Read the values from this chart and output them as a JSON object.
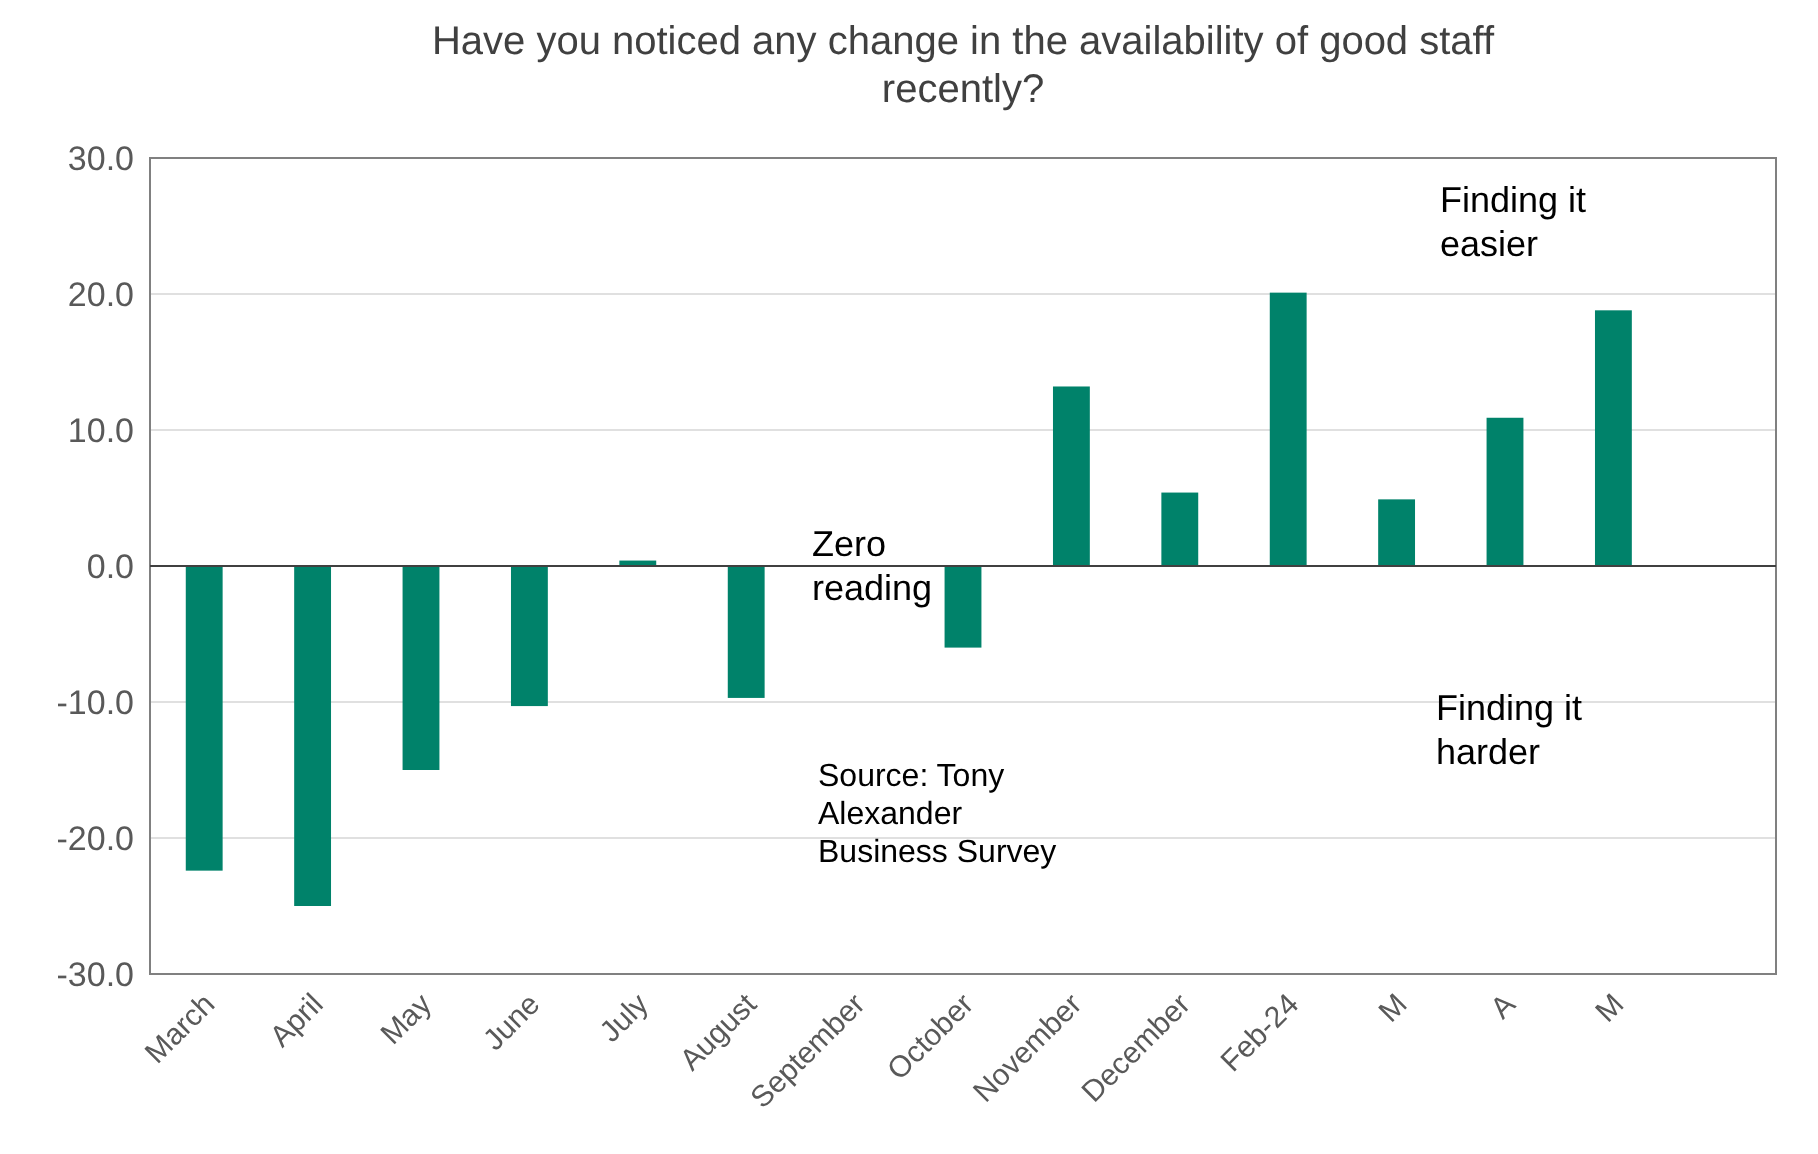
{
  "chart_data": {
    "type": "bar",
    "title": "Have you noticed any change in the availability of good staff recently?",
    "categories": [
      "March",
      "April",
      "May",
      "June",
      "July",
      "August",
      "September",
      "October",
      "November",
      "December",
      "Feb-24",
      "M",
      "A",
      "M",
      null
    ],
    "values": [
      -22.4,
      -25.0,
      -15.0,
      -10.3,
      0.4,
      -9.7,
      null,
      -6.0,
      13.2,
      5.4,
      20.1,
      4.9,
      10.9,
      18.8,
      null
    ],
    "color": "#00826a",
    "ylim": [
      -30,
      30
    ],
    "yticks": [
      {
        "value": -30,
        "label": "-30.0"
      },
      {
        "value": -20,
        "label": "-20.0"
      },
      {
        "value": -10,
        "label": "-10.0"
      },
      {
        "value": 0,
        "label": "0.0"
      },
      {
        "value": 10,
        "label": "10.0"
      },
      {
        "value": 20,
        "label": "20.0"
      },
      {
        "value": 30,
        "label": "30.0"
      }
    ],
    "grid": "y",
    "annotations": [
      "Zero reading",
      "Finding it easier",
      "Finding it harder",
      "Source: Tony Alexander Business Survey"
    ]
  }
}
